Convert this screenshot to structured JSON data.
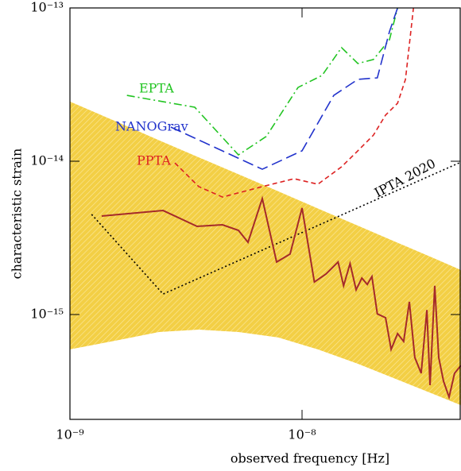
{
  "chart_data": {
    "type": "line",
    "xlabel": "observed frequency [Hz]",
    "ylabel": "characteristic strain",
    "xscale": "log",
    "yscale": "log",
    "xlim": [
      1e-09,
      4.84e-08
    ],
    "ylim": [
      2.07e-16,
      1e-13
    ],
    "xticks": [
      {
        "value": 1e-09,
        "label": "10⁻⁹"
      },
      {
        "value": 1e-08,
        "label": "10⁻⁸"
      }
    ],
    "yticks": [
      {
        "value": 1e-15,
        "label": "10⁻¹⁵"
      },
      {
        "value": 1e-14,
        "label": "10⁻¹⁴"
      },
      {
        "value": 1e-13,
        "label": "10⁻¹³"
      }
    ],
    "band": {
      "color": "#f3cf45",
      "x": [
        1e-09,
        1.63e-09,
        2.42e-09,
        3.59e-09,
        5.32e-09,
        7.9e-09,
        1.17e-08,
        1.74e-08,
        2.58e-08,
        3.82e-08,
        4.84e-08
      ],
      "upper": [
        2.45e-14,
        1.78e-14,
        1.37e-14,
        1.06e-14,
        8.22e-15,
        6.36e-15,
        4.92e-15,
        3.8e-15,
        2.94e-15,
        2.28e-15,
        1.95e-15
      ],
      "lower": [
        5.92e-16,
        6.83e-16,
        7.69e-16,
        7.97e-16,
        7.69e-16,
        7.08e-16,
        5.92e-16,
        4.77e-16,
        3.76e-16,
        2.96e-16,
        2.56e-16
      ]
    },
    "series": [
      {
        "name": "EPTA",
        "color": "#22c422",
        "linestyle": "dashdot",
        "x": [
          1.76e-09,
          3.45e-09,
          5.32e-09,
          7.01e-09,
          9.61e-09,
          1.22e-08,
          1.48e-08,
          1.74e-08,
          2.03e-08,
          2.38e-08,
          2.58e-08
        ],
        "values": [
          2.69e-14,
          2.25e-14,
          1.1e-14,
          1.45e-14,
          3.03e-14,
          3.63e-14,
          5.51e-14,
          4.34e-14,
          4.61e-14,
          6.2e-14,
          1e-13
        ]
      },
      {
        "name": "NANOGrav",
        "color": "#2233cc",
        "linestyle": "dashed",
        "x": [
          2.72e-09,
          6.74e-09,
          1e-08,
          1.37e-08,
          1.74e-08,
          2.11e-08,
          2.38e-08,
          2.58e-08,
          2.68e-08
        ],
        "values": [
          1.67e-14,
          8.87e-15,
          1.17e-14,
          2.69e-14,
          3.42e-14,
          3.5e-14,
          7e-14,
          1e-13,
          1e-13
        ]
      },
      {
        "name": "PPTA",
        "color": "#dd2222",
        "linestyle": "shortdash",
        "x": [
          2.83e-09,
          3.59e-09,
          4.54e-09,
          6.74e-09,
          9.24e-09,
          1.17e-08,
          1.48e-08,
          1.74e-08,
          2.03e-08,
          2.29e-08,
          2.58e-08,
          2.79e-08,
          3.02e-08
        ],
        "values": [
          9.76e-15,
          6.83e-15,
          5.84e-15,
          6.83e-15,
          7.69e-15,
          7.08e-15,
          9.2e-15,
          1.17e-14,
          1.48e-14,
          2e-14,
          2.39e-14,
          3.42e-14,
          1e-13
        ]
      },
      {
        "name": "IPTA 2020",
        "color": "#000000",
        "linestyle": "dotted",
        "x": [
          1.24e-09,
          2.52e-09,
          4.76e-08
        ],
        "values": [
          4.5e-15,
          1.36e-15,
          9.76e-15
        ]
      },
      {
        "color": "#a52a2a",
        "linestyle": "solid",
        "x": [
          1.37e-09,
          2.52e-09,
          3.53e-09,
          4.54e-09,
          5.32e-09,
          5.85e-09,
          6.74e-09,
          7.77e-09,
          8.88e-09,
          1e-08,
          1.13e-08,
          1.27e-08,
          1.43e-08,
          1.51e-08,
          1.61e-08,
          1.71e-08,
          1.81e-08,
          1.91e-08,
          2e-08,
          2.11e-08,
          2.29e-08,
          2.42e-08,
          2.58e-08,
          2.74e-08,
          2.9e-08,
          3.06e-08,
          3.26e-08,
          3.45e-08,
          3.56e-08,
          3.73e-08,
          3.88e-08,
          4.07e-08,
          4.3e-08,
          4.54e-08,
          4.84e-08
        ],
        "values": [
          4.39e-15,
          4.77e-15,
          3.76e-15,
          3.85e-15,
          3.54e-15,
          2.96e-15,
          5.71e-15,
          2.2e-15,
          2.48e-15,
          4.95e-15,
          1.63e-15,
          1.84e-15,
          2.2e-15,
          1.54e-15,
          2.15e-15,
          1.45e-15,
          1.73e-15,
          1.57e-15,
          1.77e-15,
          1.01e-15,
          9.53e-16,
          5.92e-16,
          7.51e-16,
          6.67e-16,
          1.21e-15,
          5.25e-16,
          4.14e-16,
          1.07e-15,
          3.46e-16,
          1.54e-15,
          5.25e-16,
          3.67e-16,
          2.89e-16,
          4.14e-16,
          4.66e-16
        ]
      }
    ]
  }
}
